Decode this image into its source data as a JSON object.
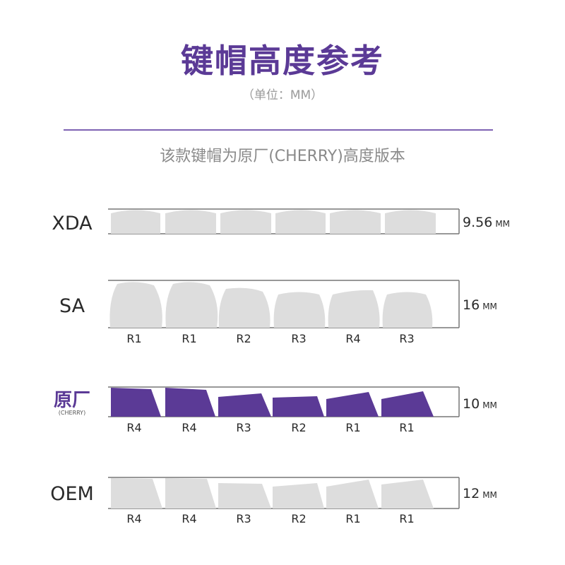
{
  "header": {
    "title": "键帽高度参考",
    "unit_note": "（单位：MM）",
    "description": "该款键帽为原厂(CHERRY)高度版本"
  },
  "colors": {
    "title": "#5b3a96",
    "highlight_key": "#5b3a96",
    "default_key": "#dddddd",
    "divider": "#7e62b3"
  },
  "profiles": [
    {
      "name": "XDA",
      "height": "9.56",
      "unit": "MM",
      "rows": [],
      "highlighted": false
    },
    {
      "name": "SA",
      "height": "16",
      "unit": "MM",
      "rows": [
        "R1",
        "R1",
        "R2",
        "R3",
        "R4",
        "R3"
      ],
      "highlighted": false
    },
    {
      "name": "原厂",
      "sublabel": "(CHERRY)",
      "height": "10",
      "unit": "MM",
      "rows": [
        "R4",
        "R4",
        "R3",
        "R2",
        "R1",
        "R1"
      ],
      "highlighted": true
    },
    {
      "name": "OEM",
      "height": "12",
      "unit": "MM",
      "rows": [
        "R4",
        "R4",
        "R3",
        "R2",
        "R1",
        "R1"
      ],
      "highlighted": false
    }
  ]
}
